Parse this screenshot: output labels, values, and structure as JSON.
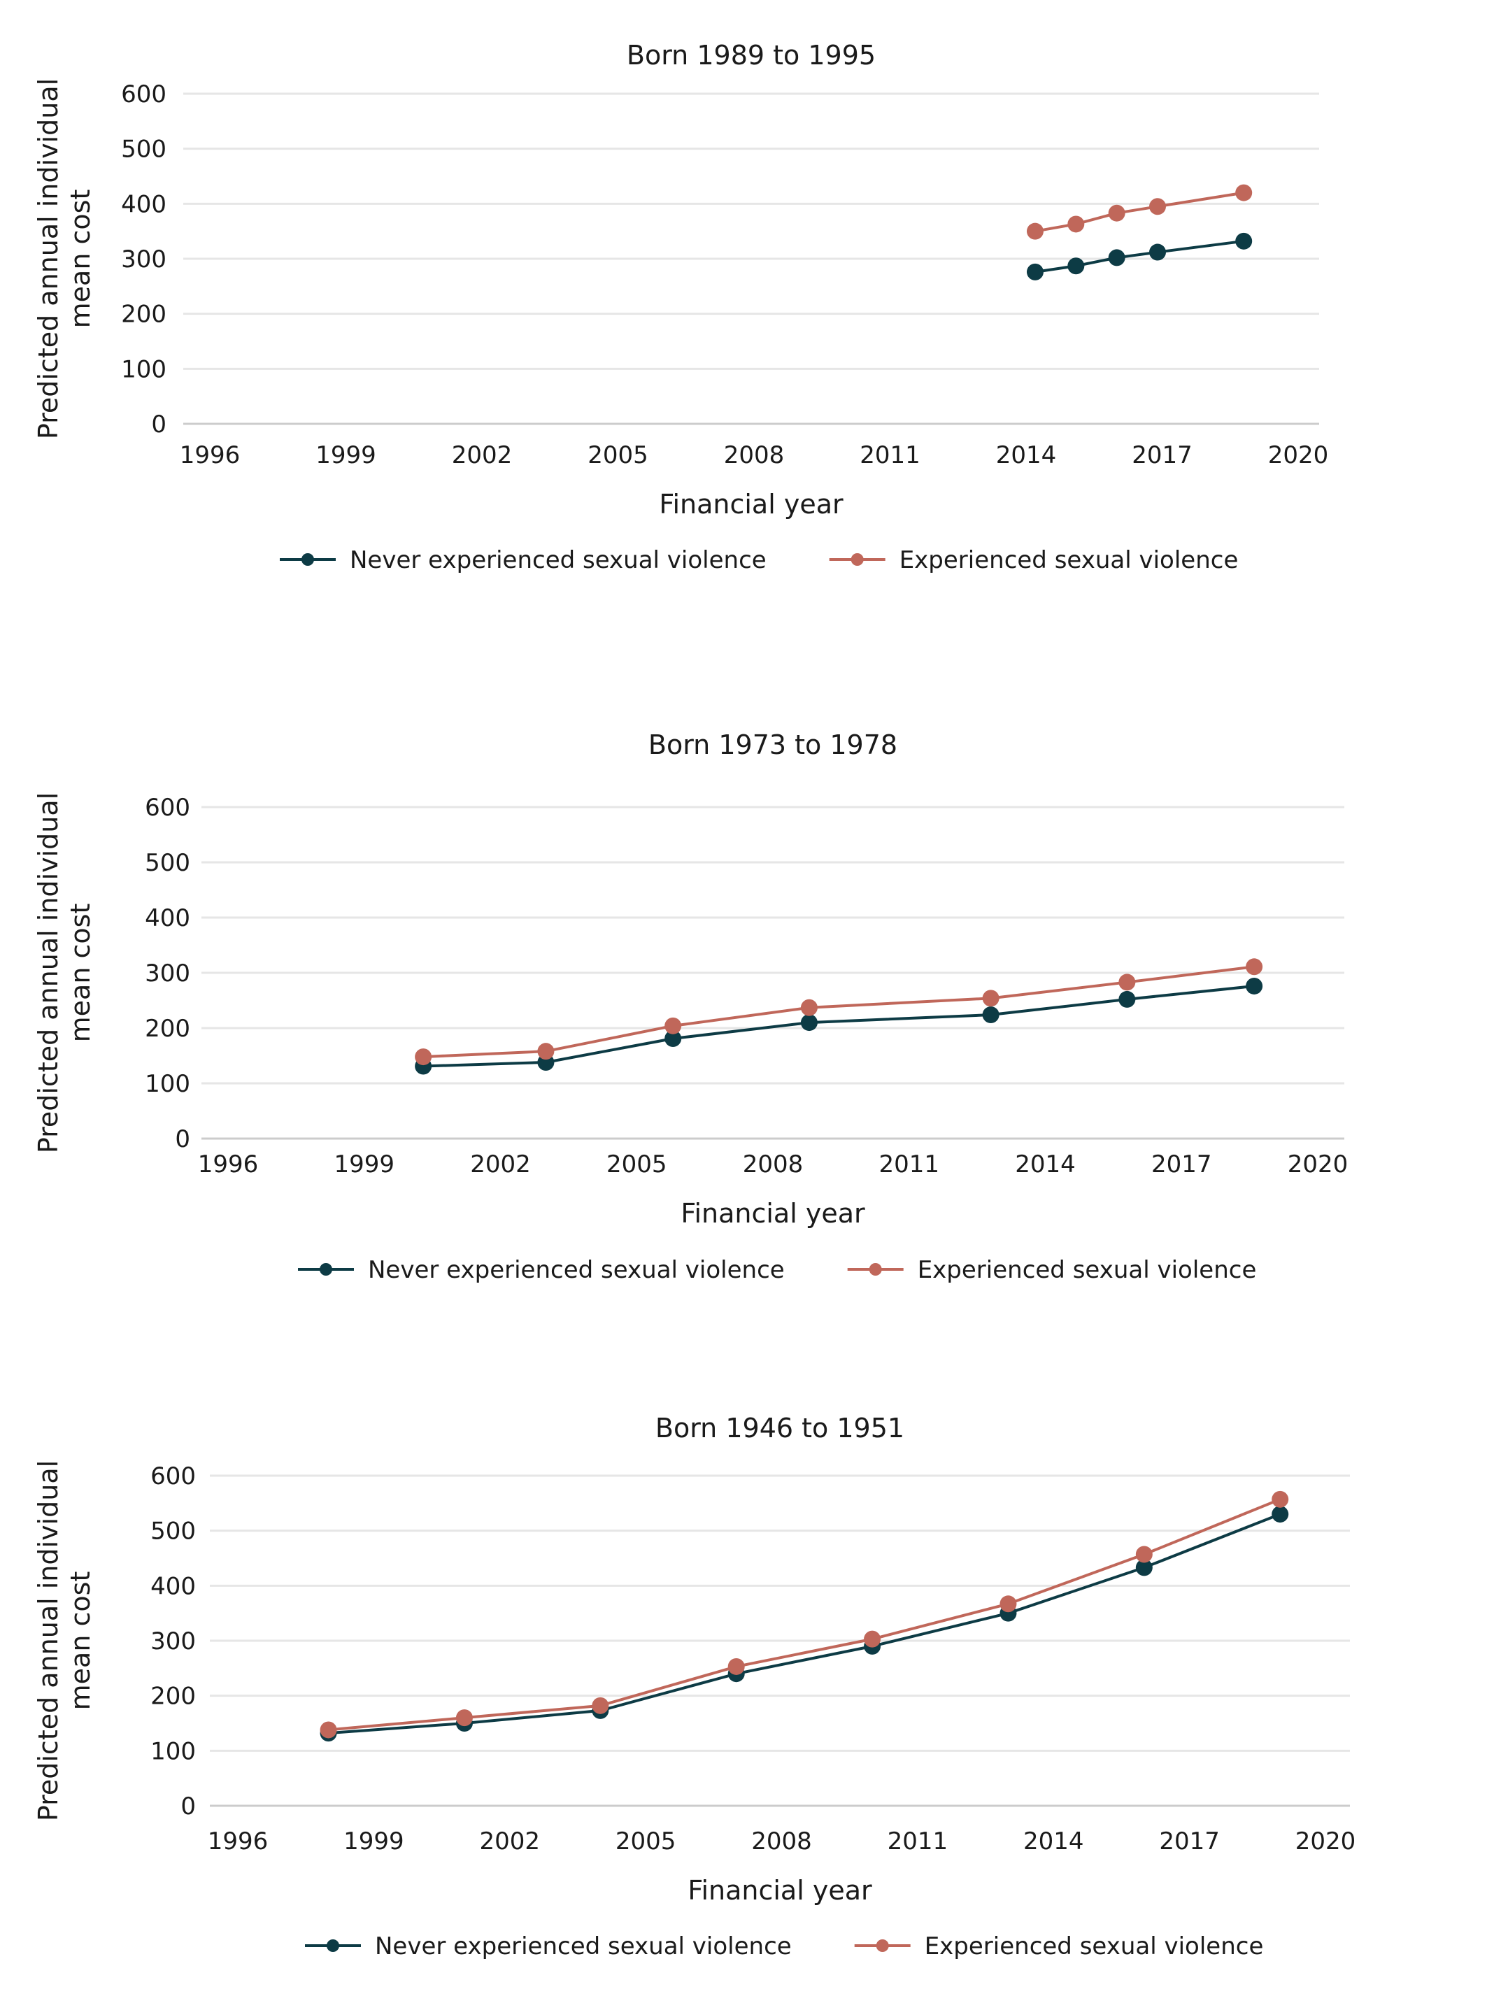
{
  "colors": {
    "never": "#0d3b45",
    "experienced": "#c0675a",
    "grid": "#e6e6e6",
    "text": "#1a1a1a"
  },
  "chart_data": [
    {
      "type": "line",
      "title": "Born 1989 to 1995",
      "xlabel": "Financial year",
      "ylabel_lines": [
        "Predicted annual individual",
        "mean cost"
      ],
      "xlim": [
        1996,
        2020
      ],
      "ylim": [
        0,
        600
      ],
      "xticks": [
        1996,
        1999,
        2002,
        2005,
        2008,
        2011,
        2014,
        2017,
        2020
      ],
      "yticks": [
        0,
        100,
        200,
        300,
        400,
        500,
        600
      ],
      "grid": true,
      "legend": "bottom",
      "series": [
        {
          "name": "Never experienced sexual violence",
          "color_key": "never",
          "x": [
            2014.2,
            2015.1,
            2016.0,
            2016.9,
            2018.8
          ],
          "y": [
            276,
            287,
            302,
            312,
            332
          ]
        },
        {
          "name": "Experienced sexual violence",
          "color_key": "experienced",
          "x": [
            2014.2,
            2015.1,
            2016.0,
            2016.9,
            2018.8
          ],
          "y": [
            350,
            363,
            383,
            395,
            420
          ]
        }
      ]
    },
    {
      "type": "line",
      "title": "Born 1973 to 1978",
      "xlabel": "Financial year",
      "ylabel_lines": [
        "Predicted annual individual",
        "mean cost"
      ],
      "xlim": [
        1996,
        2020
      ],
      "ylim": [
        0,
        600
      ],
      "xticks": [
        1996,
        1999,
        2002,
        2005,
        2008,
        2011,
        2014,
        2017,
        2020
      ],
      "yticks": [
        0,
        100,
        200,
        300,
        400,
        500,
        600
      ],
      "grid": true,
      "legend": "bottom",
      "series": [
        {
          "name": "Never experienced sexual violence",
          "color_key": "never",
          "x": [
            2000.3,
            2003.0,
            2005.8,
            2008.8,
            2012.8,
            2015.8,
            2018.6
          ],
          "y": [
            131,
            138,
            181,
            210,
            224,
            252,
            276
          ]
        },
        {
          "name": "Experienced sexual violence",
          "color_key": "experienced",
          "x": [
            2000.3,
            2003.0,
            2005.8,
            2008.8,
            2012.8,
            2015.8,
            2018.6
          ],
          "y": [
            148,
            158,
            204,
            237,
            254,
            283,
            311
          ]
        }
      ]
    },
    {
      "type": "line",
      "title": "Born 1946 to 1951",
      "xlabel": "Financial year",
      "ylabel_lines": [
        "Predicted annual individual",
        "mean cost"
      ],
      "xlim": [
        1996,
        2020
      ],
      "ylim": [
        0,
        600
      ],
      "xticks": [
        1996,
        1999,
        2002,
        2005,
        2008,
        2011,
        2014,
        2017,
        2020
      ],
      "yticks": [
        0,
        100,
        200,
        300,
        400,
        500,
        600
      ],
      "grid": true,
      "legend": "bottom",
      "series": [
        {
          "name": "Never experienced sexual violence",
          "color_key": "never",
          "x": [
            1998.0,
            2001.0,
            2004.0,
            2007.0,
            2010.0,
            2013.0,
            2016.0,
            2019.0
          ],
          "y": [
            132,
            150,
            173,
            240,
            290,
            350,
            433,
            530
          ]
        },
        {
          "name": "Experienced sexual violence",
          "color_key": "experienced",
          "x": [
            1998.0,
            2001.0,
            2004.0,
            2007.0,
            2010.0,
            2013.0,
            2016.0,
            2019.0
          ],
          "y": [
            138,
            160,
            182,
            253,
            303,
            367,
            457,
            557
          ]
        }
      ]
    }
  ]
}
